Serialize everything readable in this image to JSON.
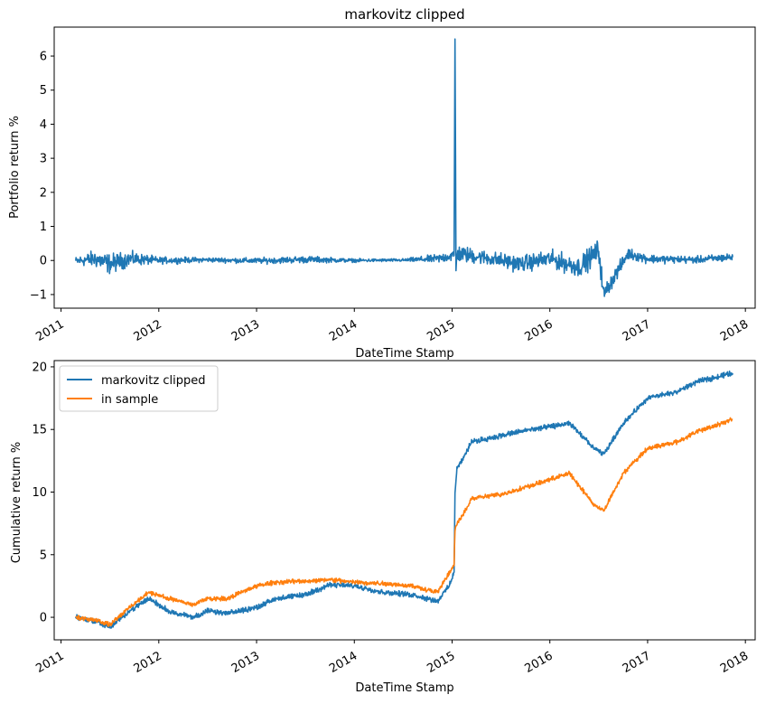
{
  "chart_data": [
    {
      "type": "line",
      "title": "markovitz clipped",
      "xlabel": "DateTime Stamp",
      "ylabel": "Portfolio return %",
      "xlim": [
        2010.93,
        2018.1
      ],
      "ylim": [
        -1.4,
        6.85
      ],
      "x_ticks": [
        "2011",
        "2012",
        "2013",
        "2014",
        "2015",
        "2016",
        "2017",
        "2018"
      ],
      "y_ticks": [
        "−1",
        "0",
        "1",
        "2",
        "3",
        "4",
        "5",
        "6"
      ],
      "grid": false,
      "series": [
        {
          "color": "#1f77b4",
          "x": [
            2011.15,
            2011.35,
            2011.5,
            2011.7,
            2012.0,
            2012.5,
            2013.0,
            2013.5,
            2014.0,
            2014.5,
            2014.85,
            2015.02,
            2015.03,
            2015.04,
            2015.05,
            2015.3,
            2015.7,
            2016.0,
            2016.3,
            2016.5,
            2016.55,
            2016.8,
            2017.0,
            2017.5,
            2017.87
          ],
          "values": [
            -0.02,
            0.05,
            -0.1,
            0.05,
            0.0,
            0.02,
            -0.01,
            0.03,
            0.0,
            0.01,
            0.05,
            0.15,
            6.5,
            -0.3,
            0.2,
            0.1,
            -0.1,
            0.05,
            -0.2,
            0.3,
            -1.0,
            0.2,
            0.05,
            0.02,
            0.1
          ],
          "noise_amplitude": [
            0.15,
            0.3,
            0.35,
            0.25,
            0.12,
            0.08,
            0.1,
            0.12,
            0.06,
            0.05,
            0.15,
            0.2,
            0,
            0.25,
            0.3,
            0.25,
            0.28,
            0.3,
            0.35,
            0.4,
            0.3,
            0.2,
            0.15,
            0.12,
            0.15
          ]
        }
      ]
    },
    {
      "type": "line",
      "title": "",
      "xlabel": "DateTime Stamp",
      "ylabel": "Cumulative return %",
      "xlim": [
        2010.93,
        2018.1
      ],
      "ylim": [
        -1.8,
        20.5
      ],
      "x_ticks": [
        "2011",
        "2012",
        "2013",
        "2014",
        "2015",
        "2016",
        "2017",
        "2018"
      ],
      "y_ticks": [
        "0",
        "5",
        "10",
        "15",
        "20"
      ],
      "grid": false,
      "legend_position": "top-left",
      "series": [
        {
          "name": "markovitz clipped",
          "color": "#1f77b4",
          "x": [
            2011.15,
            2011.35,
            2011.5,
            2011.7,
            2011.9,
            2012.1,
            2012.35,
            2012.5,
            2012.7,
            2013.0,
            2013.2,
            2013.5,
            2013.75,
            2014.0,
            2014.3,
            2014.6,
            2014.85,
            2014.97,
            2015.02,
            2015.03,
            2015.05,
            2015.1,
            2015.2,
            2015.5,
            2015.8,
            2016.0,
            2016.2,
            2016.45,
            2016.55,
            2016.75,
            2017.0,
            2017.3,
            2017.5,
            2017.87
          ],
          "values": [
            0.0,
            -0.3,
            -0.8,
            0.5,
            1.5,
            0.5,
            0.0,
            0.5,
            0.3,
            0.8,
            1.5,
            1.8,
            2.6,
            2.5,
            2.0,
            1.8,
            1.3,
            2.5,
            3.5,
            10.0,
            12.0,
            12.5,
            14.0,
            14.5,
            15.0,
            15.2,
            15.5,
            13.5,
            13.0,
            15.5,
            17.5,
            18.0,
            18.8,
            19.5
          ],
          "noise_amplitude": 0.25
        },
        {
          "name": "in sample",
          "color": "#ff7f0e",
          "x": [
            2011.15,
            2011.35,
            2011.5,
            2011.7,
            2011.9,
            2012.1,
            2012.35,
            2012.5,
            2012.7,
            2013.0,
            2013.2,
            2013.5,
            2013.75,
            2014.0,
            2014.3,
            2014.6,
            2014.85,
            2014.97,
            2015.02,
            2015.03,
            2015.05,
            2015.1,
            2015.2,
            2015.5,
            2015.8,
            2016.0,
            2016.2,
            2016.45,
            2016.55,
            2016.75,
            2017.0,
            2017.3,
            2017.5,
            2017.87
          ],
          "values": [
            0.0,
            -0.2,
            -0.6,
            0.8,
            2.0,
            1.5,
            1.0,
            1.5,
            1.5,
            2.5,
            2.8,
            2.9,
            3.0,
            2.8,
            2.7,
            2.5,
            2.0,
            3.5,
            4.2,
            7.0,
            7.5,
            8.0,
            9.5,
            9.8,
            10.5,
            11.0,
            11.5,
            9.0,
            8.5,
            11.5,
            13.5,
            14.0,
            14.8,
            15.8
          ],
          "noise_amplitude": 0.22
        }
      ]
    }
  ]
}
